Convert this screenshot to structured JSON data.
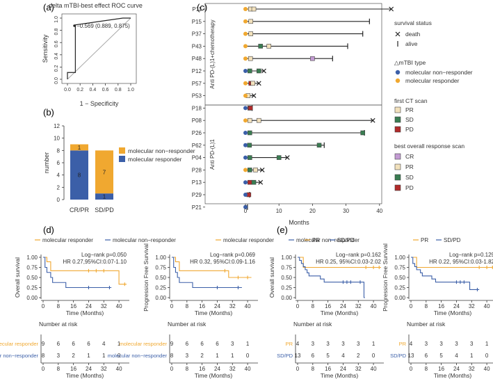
{
  "colors": {
    "orange": "#f0a830",
    "blue": "#3b5fa8",
    "diag": "#a8a8a8",
    "cr": "#c39bd3",
    "pr": "#f2e1bc",
    "sd": "#3a7d52",
    "pd": "#b22a2a"
  },
  "panels": {
    "a": "(a)",
    "b": "(b)",
    "c": "(c)",
    "d": "(d)",
    "e": "(e)"
  },
  "chart_data": [
    {
      "id": "roc",
      "type": "line",
      "title": "delta mTBI-best effect ROC curve",
      "xlabel": "1 − Specificity",
      "ylabel": "Sensitivity",
      "annotation": "−0.569 (0.889, 0.875)",
      "xlim": [
        0,
        1
      ],
      "ylim": [
        0,
        1
      ],
      "ticks": [
        "0.0",
        "0.2",
        "0.4",
        "0.6",
        "0.8",
        "1.0"
      ],
      "curve": {
        "x": [
          0,
          0,
          0.125,
          0.125,
          0.875,
          1
        ],
        "y": [
          0,
          0.111,
          0.111,
          0.889,
          1,
          1
        ]
      },
      "point": {
        "x": 0.111,
        "y": 0.875
      }
    },
    {
      "id": "stacked",
      "type": "bar",
      "xlabel": "",
      "ylabel": "number",
      "ylim": [
        0,
        12
      ],
      "yticks": [
        0,
        2,
        4,
        6,
        8,
        10,
        12
      ],
      "categories": [
        "CR/PR",
        "SD/PD"
      ],
      "series": [
        {
          "name": "molecular responder",
          "values": [
            8,
            1
          ]
        },
        {
          "name": "molecular non−responder",
          "values": [
            1,
            7
          ]
        }
      ],
      "legend": [
        "molecular non−responder",
        "molecular responder"
      ]
    },
    {
      "id": "swimmer",
      "type": "scatter",
      "xlabel": "Months",
      "xlim": [
        0,
        45
      ],
      "xticks": [
        0,
        10,
        20,
        30,
        40
      ],
      "group_labels": [
        "Anti PD-(L)1+chemotherapy",
        "Anti PD-(L)1"
      ],
      "patients": [
        {
          "id": "P11",
          "end": 43.5,
          "status": "death",
          "type": "responder",
          "first": [
            "PR",
            1.5
          ],
          "best": [
            "PR",
            2.5
          ]
        },
        {
          "id": "P15",
          "end": 37,
          "status": "alive",
          "type": "responder",
          "first": [
            "PR",
            1.6
          ],
          "best": null
        },
        {
          "id": "P37",
          "end": 35,
          "status": "alive",
          "type": "responder",
          "first": [
            "PR",
            1.6
          ],
          "best": null
        },
        {
          "id": "P43",
          "end": 30.5,
          "status": "alive",
          "type": "responder",
          "first": [
            "SD",
            4.5
          ],
          "best": [
            "PR",
            7
          ]
        },
        {
          "id": "P48",
          "end": 26,
          "status": "alive",
          "type": "responder",
          "first": [
            "PR",
            1.5
          ],
          "best": [
            "CR",
            20
          ]
        },
        {
          "id": "P12",
          "end": 5.5,
          "status": "death",
          "type": "non",
          "first": [
            "SD",
            1.3
          ],
          "best": [
            "SD",
            4
          ]
        },
        {
          "id": "P57",
          "end": 4,
          "status": "death",
          "type": "responder",
          "first": [
            "PD",
            1.6
          ],
          "best": [
            "PR",
            2.2
          ]
        },
        {
          "id": "P53",
          "end": 2.5,
          "status": "death",
          "type": "responder",
          "first": [
            "PR",
            0.8
          ],
          "best": null
        },
        {
          "id": "P18",
          "end": 2,
          "status": "alive",
          "type": "non",
          "first": [
            "PD",
            1.3
          ],
          "best": [
            "PD",
            1.5
          ]
        },
        {
          "id": "P08",
          "end": 38,
          "status": "death",
          "type": "responder",
          "first": [
            "PR",
            1.3
          ],
          "best": [
            "PR",
            4
          ]
        },
        {
          "id": "P26",
          "end": 35.5,
          "status": "alive",
          "type": "non",
          "first": [
            "SD",
            1.3
          ],
          "best": [
            "SD",
            35
          ]
        },
        {
          "id": "P62",
          "end": 23.5,
          "status": "alive",
          "type": "non",
          "first": [
            "SD",
            1.2
          ],
          "best": [
            "SD",
            22
          ]
        },
        {
          "id": "P04",
          "end": 12.5,
          "status": "death",
          "type": "non",
          "first": [
            "SD",
            1.3
          ],
          "best": [
            "SD",
            10
          ]
        },
        {
          "id": "P28",
          "end": 5,
          "status": "death",
          "type": "responder",
          "first": [
            "SD",
            1.3
          ],
          "best": [
            "PR",
            3
          ]
        },
        {
          "id": "P13",
          "end": 4.5,
          "status": "death",
          "type": "non",
          "first": [
            "PD",
            1.3
          ],
          "best": [
            "SD",
            2.5
          ]
        },
        {
          "id": "P29",
          "end": 1.2,
          "status": "alive",
          "type": "non",
          "first": [
            "PD",
            1
          ],
          "best": null
        },
        {
          "id": "P21",
          "end": 0.6,
          "status": "alive",
          "type": "non",
          "first": null,
          "best": null
        }
      ],
      "legend": {
        "survival_title": "survival status",
        "death": "death",
        "alive": "alive",
        "type_title": "△mTBI type",
        "type_items": [
          "molecular non−responder",
          "molecular responder"
        ],
        "first_title": "first CT scan",
        "first_items": [
          "PR",
          "SD",
          "PD"
        ],
        "best_title": "best overall response scan",
        "best_items": [
          "CR",
          "PR",
          "SD",
          "PD"
        ]
      }
    },
    {
      "id": "km_d_os",
      "type": "line",
      "ylabel": "Overall survival",
      "xlabel": "Time (Months)",
      "legend": [
        "molecular responder",
        "molecular non−responder"
      ],
      "stats": [
        "Log−rank p=0.050",
        "HR 0.27,95%CI:0.07-1.10"
      ],
      "yticks": [
        "0.00",
        "0.25",
        "0.50",
        "0.75",
        "1.00"
      ],
      "xticks": [
        0,
        8,
        16,
        24,
        32,
        40
      ],
      "xlim": [
        0,
        44
      ],
      "series": [
        {
          "name": "molecular responder",
          "steps": [
            [
              0,
              1
            ],
            [
              2,
              0.889
            ],
            [
              4,
              0.667
            ],
            [
              35,
              0.667
            ],
            [
              40,
              0.333
            ],
            [
              44,
              0.333
            ]
          ],
          "censor": [
            [
              24,
              0.667
            ],
            [
              28,
              0.667
            ],
            [
              32,
              0.667
            ],
            [
              43,
              0.333
            ]
          ]
        },
        {
          "name": "molecular non−responder",
          "steps": [
            [
              0,
              1
            ],
            [
              1,
              0.75
            ],
            [
              2,
              0.625
            ],
            [
              4,
              0.5
            ],
            [
              5,
              0.375
            ],
            [
              12,
              0.25
            ],
            [
              36,
              0.25
            ]
          ],
          "censor": [
            [
              24,
              0.25
            ],
            [
              35,
              0.25
            ]
          ]
        }
      ],
      "risk_title": "Number at risk",
      "risk_rows": [
        {
          "label": "molecular responder",
          "values": [
            9,
            6,
            6,
            6,
            4,
            1
          ]
        },
        {
          "label": "molecular non−responder",
          "values": [
            8,
            3,
            2,
            1,
            1,
            0
          ]
        }
      ]
    },
    {
      "id": "km_d_pfs",
      "type": "line",
      "ylabel": "Progression Free Survival",
      "xlabel": "Time (Months)",
      "legend": [
        "molecular responder",
        "molecular non−responder"
      ],
      "stats": [
        "Log−rank p=0.069",
        "HR 0.32, 95%CI:0.09-1.16"
      ],
      "yticks": [
        "0.00",
        "0.25",
        "0.50",
        "0.75",
        "1.00"
      ],
      "xticks": [
        0,
        8,
        16,
        24,
        32,
        40
      ],
      "xlim": [
        0,
        44
      ],
      "series": [
        {
          "name": "molecular responder",
          "steps": [
            [
              0,
              1
            ],
            [
              2,
              0.889
            ],
            [
              4,
              0.667
            ],
            [
              29,
              0.667
            ],
            [
              30,
              0.5
            ],
            [
              42,
              0.5
            ]
          ],
          "censor": [
            [
              28,
              0.667
            ],
            [
              35,
              0.5
            ],
            [
              40,
              0.5
            ]
          ]
        },
        {
          "name": "molecular non−responder",
          "steps": [
            [
              0,
              1
            ],
            [
              1,
              0.75
            ],
            [
              2,
              0.625
            ],
            [
              3,
              0.5
            ],
            [
              4,
              0.375
            ],
            [
              11,
              0.25
            ],
            [
              37,
              0.25
            ]
          ],
          "censor": [
            [
              24,
              0.25
            ],
            [
              35,
              0.25
            ]
          ]
        }
      ],
      "risk_title": "Number at risk",
      "risk_rows": [
        {
          "label": "molecular responder",
          "values": [
            9,
            6,
            6,
            6,
            3,
            1
          ]
        },
        {
          "label": "molecular non−responder",
          "values": [
            8,
            3,
            2,
            1,
            1,
            0
          ]
        }
      ]
    },
    {
      "id": "km_e_os",
      "type": "line",
      "ylabel": "Overall survival",
      "xlabel": "Time (Months)",
      "legend": [
        "PR",
        "SD/PD"
      ],
      "stats": [
        "Log−rank p=0.162",
        "HR 0.25, 95%CI:0.03-2.02"
      ],
      "yticks": [
        "0.00",
        "0.25",
        "0.50",
        "0.75",
        "1.00"
      ],
      "xticks": [
        0,
        8,
        16,
        24,
        32,
        40
      ],
      "xlim": [
        0,
        44
      ],
      "series": [
        {
          "name": "PR",
          "steps": [
            [
              0,
              1
            ],
            [
              3,
              0.75
            ],
            [
              44,
              0.75
            ]
          ],
          "censor": [
            [
              36,
              0.75
            ],
            [
              40,
              0.75
            ],
            [
              43,
              0.75
            ]
          ]
        },
        {
          "name": "SD/PD",
          "steps": [
            [
              0,
              1
            ],
            [
              1,
              0.923
            ],
            [
              2,
              0.846
            ],
            [
              3,
              0.769
            ],
            [
              4,
              0.692
            ],
            [
              5,
              0.615
            ],
            [
              6,
              0.538
            ],
            [
              12,
              0.462
            ],
            [
              14,
              0.385
            ],
            [
              35,
              0.385
            ],
            [
              35,
              0
            ],
            [
              35.5,
              0
            ]
          ],
          "censor": [
            [
              24,
              0.385
            ],
            [
              26,
              0.385
            ],
            [
              28,
              0.385
            ],
            [
              33,
              0.385
            ]
          ]
        }
      ],
      "risk_title": "Number at risk",
      "risk_rows": [
        {
          "label": "PR",
          "values": [
            4,
            3,
            3,
            3,
            3,
            1
          ]
        },
        {
          "label": "SD/PD",
          "values": [
            13,
            6,
            5,
            4,
            2,
            0
          ]
        }
      ]
    },
    {
      "id": "km_e_pfs",
      "type": "line",
      "ylabel": "Progression Free Survival",
      "xlabel": "Time (Months)",
      "legend": [
        "PR",
        "SD/PD"
      ],
      "stats": [
        "Log−rank p=0.129",
        "HR 0.22, 95%CI:0.03-1.82"
      ],
      "yticks": [
        "0.00",
        "0.25",
        "0.50",
        "0.75",
        "1.00"
      ],
      "xticks": [
        0,
        8,
        16,
        24,
        32,
        40
      ],
      "xlim": [
        0,
        44
      ],
      "series": [
        {
          "name": "PR",
          "steps": [
            [
              0,
              1
            ],
            [
              3,
              0.75
            ],
            [
              44,
              0.75
            ]
          ],
          "censor": [
            [
              36,
              0.75
            ],
            [
              40,
              0.75
            ],
            [
              43,
              0.75
            ]
          ]
        },
        {
          "name": "SD/PD",
          "steps": [
            [
              0,
              1
            ],
            [
              1,
              0.846
            ],
            [
              2,
              0.769
            ],
            [
              3,
              0.692
            ],
            [
              5,
              0.615
            ],
            [
              6,
              0.538
            ],
            [
              11,
              0.462
            ],
            [
              13,
              0.385
            ],
            [
              30,
              0.385
            ],
            [
              31,
              0.2
            ],
            [
              36,
              0.2
            ]
          ],
          "censor": [
            [
              24,
              0.385
            ],
            [
              26,
              0.385
            ],
            [
              28,
              0.385
            ],
            [
              35,
              0.2
            ]
          ]
        }
      ],
      "risk_title": "Number at risk",
      "risk_rows": [
        {
          "label": "PR",
          "values": [
            4,
            3,
            3,
            3,
            3,
            1
          ]
        },
        {
          "label": "SD/PD",
          "values": [
            13,
            6,
            5,
            4,
            1,
            0
          ]
        }
      ]
    }
  ]
}
